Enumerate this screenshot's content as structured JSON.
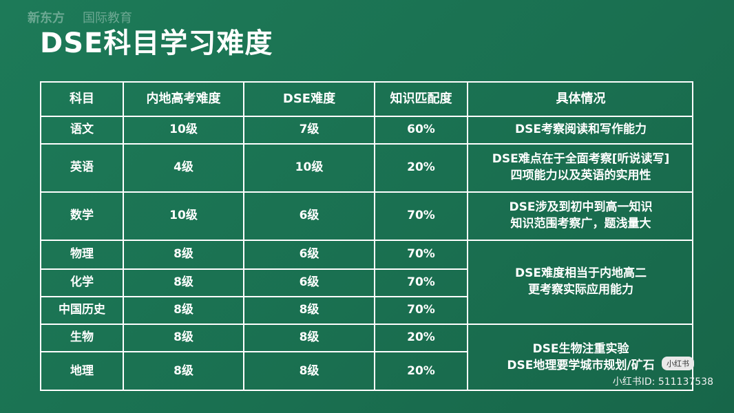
{
  "logo": {
    "brand": "新东方",
    "division": "国际教育"
  },
  "title": "DSE科目学习难度",
  "table": {
    "header": [
      "科目",
      "内地高考难度",
      "DSE难度",
      "知识匹配度",
      "具体情况"
    ],
    "groups": [
      {
        "rows": [
          [
            "语文",
            "10级",
            "7级",
            "60%"
          ]
        ],
        "detail": [
          "DSE考察阅读和写作能力"
        ]
      },
      {
        "rows": [
          [
            "英语",
            "4级",
            "10级",
            "20%"
          ]
        ],
        "detail": [
          "DSE难点在于全面考察[听说读写]",
          "四项能力以及英语的实用性"
        ]
      },
      {
        "rows": [
          [
            "数学",
            "10级",
            "6级",
            "70%"
          ]
        ],
        "detail": [
          "DSE涉及到初中到高一知识",
          "知识范围考察广，题浅量大"
        ]
      },
      {
        "rows": [
          [
            "物理",
            "8级",
            "6级",
            "70%"
          ],
          [
            "化学",
            "8级",
            "6级",
            "70%"
          ],
          [
            "中国历史",
            "8级",
            "8级",
            "70%"
          ]
        ],
        "detail": [
          "DSE难度相当于内地高二",
          "更考察实际应用能力"
        ]
      },
      {
        "rows": [
          [
            "生物",
            "8级",
            "8级",
            "20%"
          ],
          [
            "地理",
            "8级",
            "8级",
            "20%"
          ]
        ],
        "detail": [
          "DSE生物注重实验",
          "DSE地理要学城市规划/矿石"
        ]
      }
    ]
  },
  "watermark": {
    "badge": "小红书",
    "id": "小红书ID: 511137538"
  }
}
